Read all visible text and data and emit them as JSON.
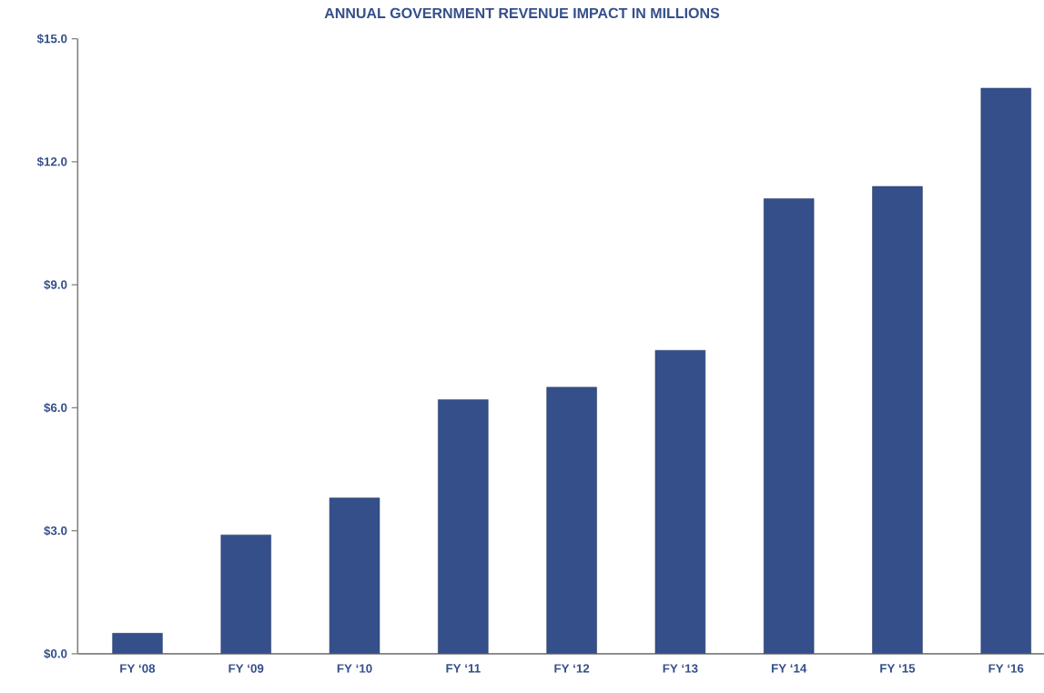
{
  "chart_data": {
    "type": "bar",
    "title": "ANNUAL GOVERNMENT REVENUE IMPACT IN MILLIONS",
    "categories": [
      "FY ‘08",
      "FY ‘09",
      "FY ‘10",
      "FY ‘11",
      "FY ‘12",
      "FY ‘13",
      "FY ‘14",
      "FY ‘15",
      "FY ‘16"
    ],
    "values": [
      0.5,
      2.9,
      3.8,
      6.2,
      6.5,
      7.4,
      11.1,
      11.4,
      13.8
    ],
    "color": "#344f8a",
    "ylim": [
      0,
      15
    ],
    "yticks": [
      {
        "value": 0,
        "label": "$0.0"
      },
      {
        "value": 3,
        "label": "$3.0"
      },
      {
        "value": 6,
        "label": "$6.0"
      },
      {
        "value": 9,
        "label": "$9.0"
      },
      {
        "value": 12,
        "label": "$12.0"
      },
      {
        "value": 15,
        "label": "$15.0"
      }
    ],
    "grid": false
  }
}
